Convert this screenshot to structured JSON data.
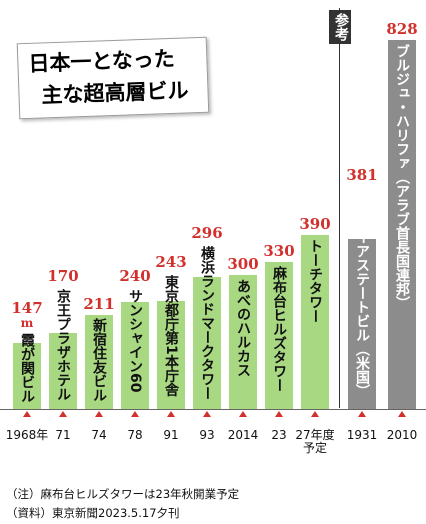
{
  "chart_data": {
    "type": "bar",
    "title": [
      "日本一となった",
      "主な超高層ビル"
    ],
    "unit": "m",
    "categories": [
      "霞が関ビル",
      "京王プラザホテル",
      "新宿住友ビル",
      "サンシャイン60",
      "東京都庁第1本庁舎",
      "横浜ランドマークタワー",
      "あべのハルカス",
      "麻布台ヒルズタワー",
      "トーチタワー"
    ],
    "years": [
      "1968年",
      "71",
      "74",
      "78",
      "91",
      "93",
      "2014",
      "23",
      "27年度\n予定"
    ],
    "values": [
      147,
      170,
      211,
      240,
      243,
      296,
      300,
      330,
      390
    ],
    "color": "#a8d882",
    "reference": {
      "label": "参考",
      "categories": [
        "エンパイアステートビル（米国）",
        "ブルジュ・ハリファ（アラブ首長国連邦）"
      ],
      "years": [
        "1931",
        "2010"
      ],
      "values": [
        381,
        828
      ],
      "color": "#8c8c8c"
    },
    "ylim": [
      0,
      850
    ]
  },
  "notes": [
    "（注）麻布台ヒルズタワーは23年秋開業予定",
    "（資料）東京新聞2023.5.17夕刊"
  ]
}
